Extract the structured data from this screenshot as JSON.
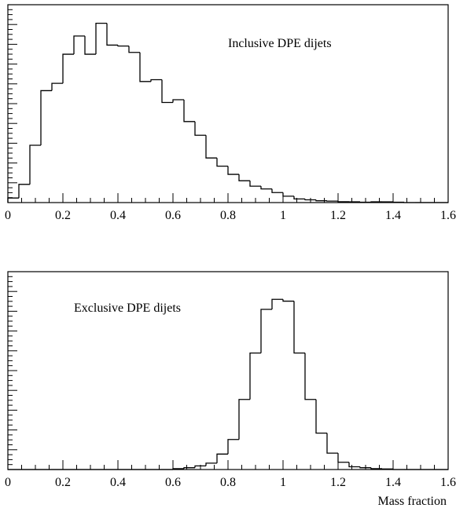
{
  "chart_data": [
    {
      "type": "histogram",
      "annotation": "Inclusive DPE dijets",
      "xlabel": "",
      "xlim": [
        0,
        1.6
      ],
      "ylim": [
        0,
        1.0
      ],
      "x_tick_labels": [
        "0",
        "0.2",
        "0.4",
        "0.6",
        "0.8",
        "1",
        "1.2",
        "1.4",
        "1.6"
      ],
      "bin_width": 0.04,
      "bin_start": 0.0,
      "values": [
        0.025,
        0.1,
        0.315,
        0.615,
        0.655,
        0.815,
        0.915,
        0.815,
        0.985,
        0.865,
        0.86,
        0.825,
        0.665,
        0.675,
        0.55,
        0.565,
        0.445,
        0.37,
        0.245,
        0.2,
        0.155,
        0.12,
        0.09,
        0.075,
        0.055,
        0.035,
        0.02,
        0.015,
        0.01,
        0.008,
        0.005,
        0.004,
        0.002,
        0.004,
        0.004,
        0.002,
        0,
        0,
        0,
        0
      ]
    },
    {
      "type": "histogram",
      "annotation": "Exclusive DPE dijets",
      "xlabel": "Mass fraction",
      "xlim": [
        0,
        1.6
      ],
      "ylim": [
        0,
        1.0
      ],
      "x_tick_labels": [
        "0",
        "0.2",
        "0.4",
        "0.6",
        "0.8",
        "1",
        "1.2",
        "1.4",
        "1.6"
      ],
      "bin_width": 0.04,
      "bin_start": 0.0,
      "values": [
        0,
        0,
        0,
        0,
        0,
        0,
        0,
        0,
        0,
        0,
        0,
        0,
        0,
        0,
        0,
        0.005,
        0.01,
        0.02,
        0.035,
        0.085,
        0.165,
        0.385,
        0.64,
        0.88,
        0.935,
        0.925,
        0.64,
        0.385,
        0.2,
        0.09,
        0.04,
        0.015,
        0.01,
        0.005,
        0.003,
        0,
        0,
        0,
        0,
        0
      ]
    }
  ]
}
